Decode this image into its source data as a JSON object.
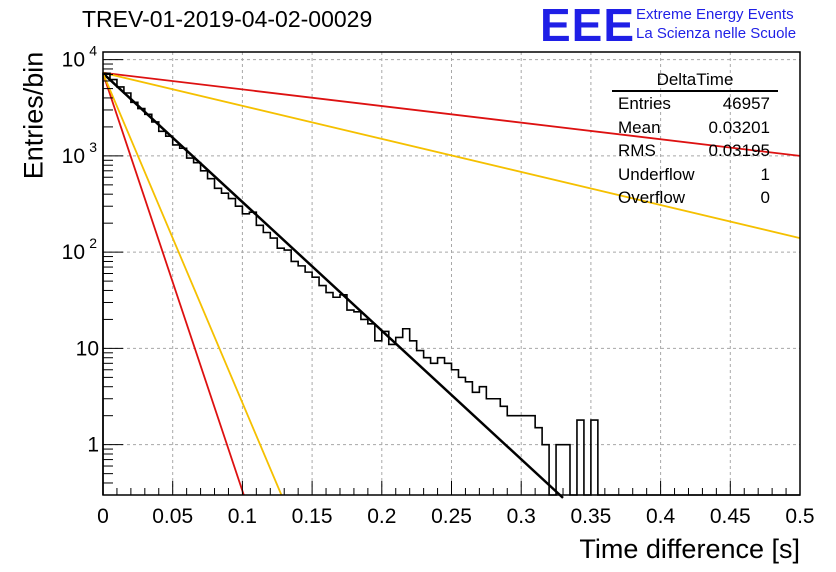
{
  "header": {
    "title": "TREV-01-2019-04-02-00029",
    "logo_text": "EEE",
    "logo_line1": "Extreme Energy Events",
    "logo_line2": "La Scienza nelle Scuole"
  },
  "stats_box": {
    "title": "DeltaTime",
    "rows": [
      {
        "label": "Entries",
        "value": "46957"
      },
      {
        "label": "Mean",
        "value": "0.03201"
      },
      {
        "label": "RMS",
        "value": "0.03195"
      },
      {
        "label": "Underflow",
        "value": "1"
      },
      {
        "label": "Overflow",
        "value": "0"
      }
    ]
  },
  "chart_data": {
    "type": "line",
    "title": "TREV-01-2019-04-02-00029",
    "xlabel": "Time difference [s]",
    "ylabel": "Entries/bin",
    "xlim": [
      0,
      0.5
    ],
    "ylim": [
      0.3,
      12000
    ],
    "yscale": "log",
    "grid": true,
    "x_ticks": [
      "0",
      "0.05",
      "0.1",
      "0.15",
      "0.2",
      "0.25",
      "0.3",
      "0.35",
      "0.4",
      "0.45",
      "0.5"
    ],
    "y_ticks": [
      {
        "value": 1,
        "label": "1"
      },
      {
        "value": 10,
        "label": "10"
      },
      {
        "value": 100,
        "label": "10",
        "exp": "2"
      },
      {
        "value": 1000,
        "label": "10",
        "exp": "3"
      },
      {
        "value": 10000,
        "label": "10",
        "exp": "4"
      }
    ],
    "histogram": {
      "name": "DeltaTime",
      "bin_width": 0.005,
      "values": [
        7200,
        6200,
        5200,
        4500,
        3600,
        3100,
        2700,
        2250,
        1800,
        1600,
        1300,
        1200,
        950,
        850,
        700,
        580,
        460,
        410,
        360,
        300,
        250,
        260,
        190,
        160,
        140,
        110,
        105,
        80,
        72,
        62,
        55,
        45,
        38,
        34,
        36,
        25,
        24,
        20,
        18,
        12,
        15,
        11,
        13,
        16,
        12,
        9.5,
        8,
        7,
        8,
        7,
        6,
        5,
        4.5,
        3.5,
        4,
        3,
        3,
        2.5,
        2,
        2,
        2,
        2,
        1.5,
        1,
        0,
        1,
        1,
        0,
        1.8,
        0,
        1.8,
        0,
        0,
        0,
        0,
        0,
        0,
        0,
        0,
        0,
        0,
        0,
        0,
        0,
        0,
        0,
        0,
        0,
        0,
        0,
        0,
        0,
        0,
        0,
        0,
        0,
        0,
        0,
        0,
        0
      ],
      "color": "#000000"
    },
    "fits": [
      {
        "name": "fit",
        "color": "#000000",
        "x": [
          0,
          0.33
        ],
        "y": [
          7200,
          0.28
        ]
      },
      {
        "name": "red-steep",
        "color": "#dd1111",
        "x": [
          0,
          0.101
        ],
        "y": [
          7200,
          0.3
        ]
      },
      {
        "name": "yellow-steep",
        "color": "#f5c000",
        "x": [
          0,
          0.128
        ],
        "y": [
          7200,
          0.3
        ]
      },
      {
        "name": "red-shallow",
        "color": "#dd1111",
        "x": [
          0,
          0.5
        ],
        "y": [
          7300,
          1000
        ]
      },
      {
        "name": "yellow-shallow",
        "color": "#f5c000",
        "x": [
          0,
          0.5
        ],
        "y": [
          7300,
          140
        ]
      }
    ]
  }
}
